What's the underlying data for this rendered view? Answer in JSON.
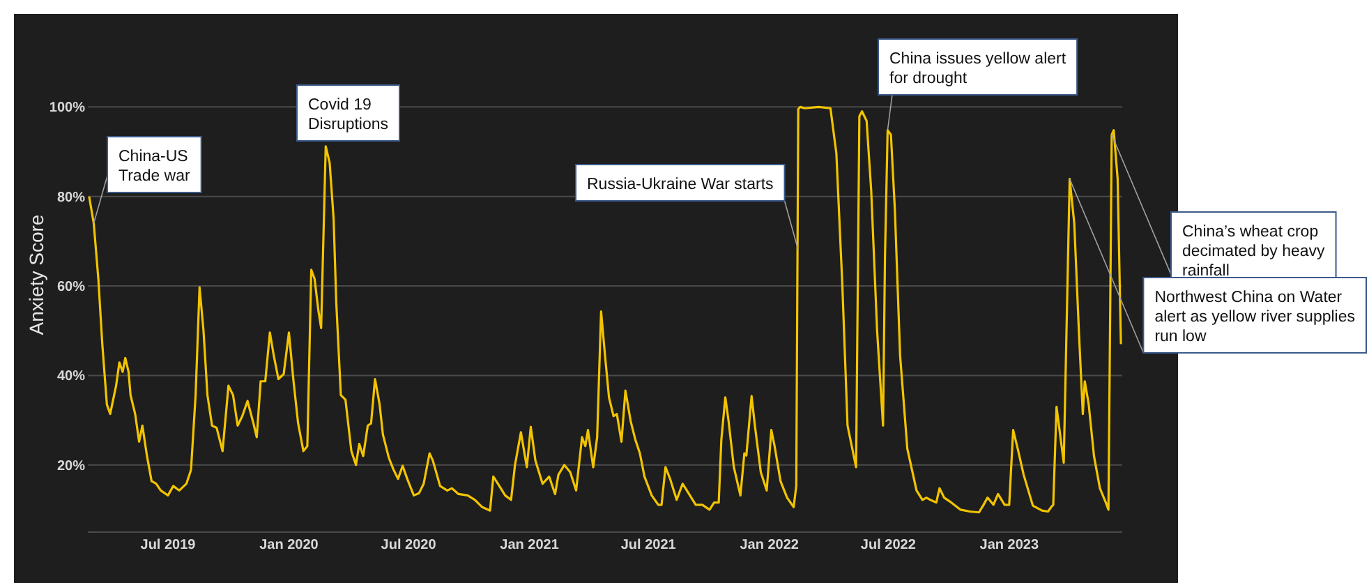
{
  "chart_data": {
    "type": "line",
    "ylabel": "Anxiety Score",
    "grid": "y",
    "xlim": [
      "2019-03-01",
      "2023-06-22"
    ],
    "ylim": [
      5,
      120
    ],
    "xticks": [
      {
        "value": "2019-07-01",
        "label": "Jul 2019"
      },
      {
        "value": "2020-01-01",
        "label": "Jan 2020"
      },
      {
        "value": "2020-07-01",
        "label": "Jul 2020"
      },
      {
        "value": "2021-01-01",
        "label": "Jan 2021"
      },
      {
        "value": "2021-07-01",
        "label": "Jul 2021"
      },
      {
        "value": "2022-01-01",
        "label": "Jan 2022"
      },
      {
        "value": "2022-07-01",
        "label": "Jul 2022"
      },
      {
        "value": "2023-01-01",
        "label": "Jan 2023"
      }
    ],
    "yticks": [
      {
        "value": 20,
        "label": "20%"
      },
      {
        "value": 40,
        "label": "40%"
      },
      {
        "value": 60,
        "label": "60%"
      },
      {
        "value": 80,
        "label": "80%"
      },
      {
        "value": 100,
        "label": "100%"
      }
    ],
    "x": [
      "2019-03-03",
      "2019-03-10",
      "2019-03-17",
      "2019-03-23",
      "2019-03-30",
      "2019-04-04",
      "2019-04-13",
      "2019-04-18",
      "2019-04-23",
      "2019-04-27",
      "2019-05-02",
      "2019-05-05",
      "2019-05-12",
      "2019-05-18",
      "2019-05-23",
      "2019-05-30",
      "2019-06-06",
      "2019-06-13",
      "2019-06-20",
      "2019-07-01",
      "2019-07-09",
      "2019-07-18",
      "2019-07-29",
      "2019-08-05",
      "2019-08-12",
      "2019-08-18",
      "2019-08-24",
      "2019-08-30",
      "2019-09-06",
      "2019-09-13",
      "2019-09-22",
      "2019-10-01",
      "2019-10-08",
      "2019-10-15",
      "2019-10-22",
      "2019-10-30",
      "2019-11-08",
      "2019-11-13",
      "2019-11-19",
      "2019-11-26",
      "2019-12-03",
      "2019-12-09",
      "2019-12-16",
      "2019-12-24",
      "2020-01-01",
      "2020-01-08",
      "2020-01-15",
      "2020-01-23",
      "2020-01-29",
      "2020-02-04",
      "2020-02-09",
      "2020-02-15",
      "2020-02-19",
      "2020-02-26",
      "2020-03-03",
      "2020-03-09",
      "2020-03-13",
      "2020-03-20",
      "2020-03-27",
      "2020-04-05",
      "2020-04-12",
      "2020-04-17",
      "2020-04-23",
      "2020-04-30",
      "2020-05-05",
      "2020-05-11",
      "2020-05-18",
      "2020-05-23",
      "2020-06-01",
      "2020-06-08",
      "2020-06-15",
      "2020-06-22",
      "2020-06-29",
      "2020-07-09",
      "2020-07-17",
      "2020-07-24",
      "2020-08-02",
      "2020-08-07",
      "2020-08-18",
      "2020-08-29",
      "2020-09-05",
      "2020-09-15",
      "2020-09-29",
      "2020-10-10",
      "2020-10-21",
      "2020-11-02",
      "2020-11-07",
      "2020-11-14",
      "2020-11-25",
      "2020-12-04",
      "2020-12-10",
      "2020-12-19",
      "2020-12-28",
      "2021-01-03",
      "2021-01-10",
      "2021-01-21",
      "2021-01-31",
      "2021-02-09",
      "2021-02-14",
      "2021-02-23",
      "2021-03-04",
      "2021-03-13",
      "2021-03-22",
      "2021-03-27",
      "2021-03-31",
      "2021-04-08",
      "2021-04-14",
      "2021-04-20",
      "2021-04-26",
      "2021-05-02",
      "2021-05-09",
      "2021-05-14",
      "2021-05-21",
      "2021-05-27",
      "2021-06-04",
      "2021-06-11",
      "2021-06-18",
      "2021-06-25",
      "2021-07-06",
      "2021-07-16",
      "2021-07-21",
      "2021-07-27",
      "2021-08-03",
      "2021-08-13",
      "2021-08-22",
      "2021-08-31",
      "2021-09-11",
      "2021-09-21",
      "2021-10-02",
      "2021-10-09",
      "2021-10-16",
      "2021-10-20",
      "2021-10-26",
      "2021-10-31",
      "2021-11-08",
      "2021-11-18",
      "2021-11-24",
      "2021-11-27",
      "2021-12-05",
      "2021-12-10",
      "2021-12-19",
      "2021-12-28",
      "2022-01-04",
      "2022-01-09",
      "2022-01-18",
      "2022-01-28",
      "2022-02-07",
      "2022-02-11",
      "2022-02-14",
      "2022-02-17",
      "2022-02-24",
      "2022-03-17",
      "2022-04-04",
      "2022-04-13",
      "2022-04-22",
      "2022-04-30",
      "2022-05-13",
      "2022-05-18",
      "2022-05-22",
      "2022-05-29",
      "2022-06-05",
      "2022-06-14",
      "2022-06-23",
      "2022-06-26",
      "2022-06-30",
      "2022-07-05",
      "2022-07-11",
      "2022-07-19",
      "2022-07-30",
      "2022-08-13",
      "2022-08-22",
      "2022-08-28",
      "2022-09-03",
      "2022-09-12",
      "2022-09-17",
      "2022-09-24",
      "2022-10-05",
      "2022-10-19",
      "2022-11-02",
      "2022-11-16",
      "2022-11-23",
      "2022-11-29",
      "2022-12-08",
      "2022-12-15",
      "2022-12-25",
      "2023-01-01",
      "2023-01-07",
      "2023-01-14",
      "2023-01-23",
      "2023-02-06",
      "2023-02-20",
      "2023-03-01",
      "2023-03-06",
      "2023-03-09",
      "2023-03-14",
      "2023-03-25",
      "2023-04-03",
      "2023-04-10",
      "2023-04-17",
      "2023-04-23",
      "2023-04-26",
      "2023-05-02",
      "2023-05-10",
      "2023-05-19",
      "2023-05-28",
      "2023-06-01",
      "2023-06-06",
      "2023-06-09",
      "2023-06-15",
      "2023-06-20"
    ],
    "series": [
      {
        "color": "#f2c400",
        "values": [
          80,
          74,
          61.6,
          47,
          33.5,
          31.4,
          37.7,
          42.9,
          40.8,
          43.9,
          40.8,
          35.6,
          31.4,
          25.2,
          28.8,
          22,
          16.4,
          15.8,
          14.3,
          13.2,
          15.3,
          14.3,
          15.8,
          18.9,
          35.6,
          59.7,
          50,
          35.6,
          28.8,
          28.3,
          23.1,
          37.7,
          35.6,
          28.8,
          30.9,
          34.3,
          29.3,
          26.2,
          38.7,
          38.7,
          49.6,
          44.4,
          39.2,
          40.3,
          49.6,
          38.7,
          29.3,
          23.1,
          24.2,
          63.6,
          61.6,
          54.3,
          50.6,
          91.2,
          87.5,
          75,
          56.4,
          35.6,
          34.6,
          23.1,
          20,
          24.7,
          22,
          28.8,
          29.3,
          39.2,
          33.5,
          26.8,
          21.6,
          19,
          16.9,
          19.8,
          16.9,
          13.2,
          13.7,
          15.8,
          22.6,
          21,
          15.3,
          14.3,
          14.8,
          13.5,
          13.2,
          12.2,
          10.6,
          9.8,
          17.4,
          15.8,
          13.2,
          12.2,
          20,
          27.3,
          19.5,
          28.5,
          21,
          15.8,
          17.4,
          13.5,
          17.8,
          20,
          18.4,
          14.3,
          26.2,
          24.2,
          27.8,
          19.5,
          26.2,
          54.3,
          44.4,
          35.1,
          30.9,
          31.4,
          25.2,
          36.6,
          29.8,
          25.7,
          22.6,
          17.4,
          13.2,
          11.1,
          11.1,
          19.5,
          16.9,
          12.2,
          15.8,
          13.7,
          11.1,
          11.1,
          10,
          11.6,
          11.6,
          25.7,
          35.1,
          29.8,
          19.5,
          13.2,
          22.6,
          22.1,
          35.4,
          28.8,
          18.4,
          14.3,
          27.8,
          24.2,
          16.4,
          12.7,
          10.6,
          15.3,
          99.5,
          100,
          99.7,
          100,
          99.7,
          89.6,
          60.5,
          28.8,
          19.5,
          97.9,
          99,
          96.9,
          81.3,
          50,
          28.8,
          66.8,
          94.8,
          93.8,
          77.1,
          44.4,
          23.6,
          14.3,
          12.2,
          12.7,
          12.2,
          11.6,
          14.8,
          12.7,
          11.6,
          10,
          9.6,
          9.4,
          11.1,
          12.7,
          11.1,
          13.5,
          11.1,
          11.1,
          27.8,
          23.6,
          17.8,
          10.9,
          9.8,
          9.6,
          10.6,
          11.1,
          33,
          20.5,
          83.9,
          74,
          50,
          31.4,
          38.7,
          33.5,
          22,
          14.8,
          11.6,
          10,
          93.8,
          94.8,
          83.9,
          47
        ]
      }
    ],
    "annotations": [
      {
        "text": "China-US Trade war",
        "x": "2019-03-10",
        "y": 74
      },
      {
        "text": "Covid 19 Disruptions",
        "x": "2020-02-26",
        "y": 91.2
      },
      {
        "text": "Russia-Ukraine War starts",
        "x": "2022-02-14",
        "y": 68
      },
      {
        "text": "China issues yellow alert for drought",
        "x": "2022-06-30",
        "y": 94.8
      },
      {
        "text": "China’s wheat crop decimated by heavy rainfall",
        "x": "2023-06-06",
        "y": 93.8
      },
      {
        "text": "Northwest China on Water alert as yellow river supplies run low",
        "x": "2023-04-03",
        "y": 83.9
      }
    ]
  }
}
